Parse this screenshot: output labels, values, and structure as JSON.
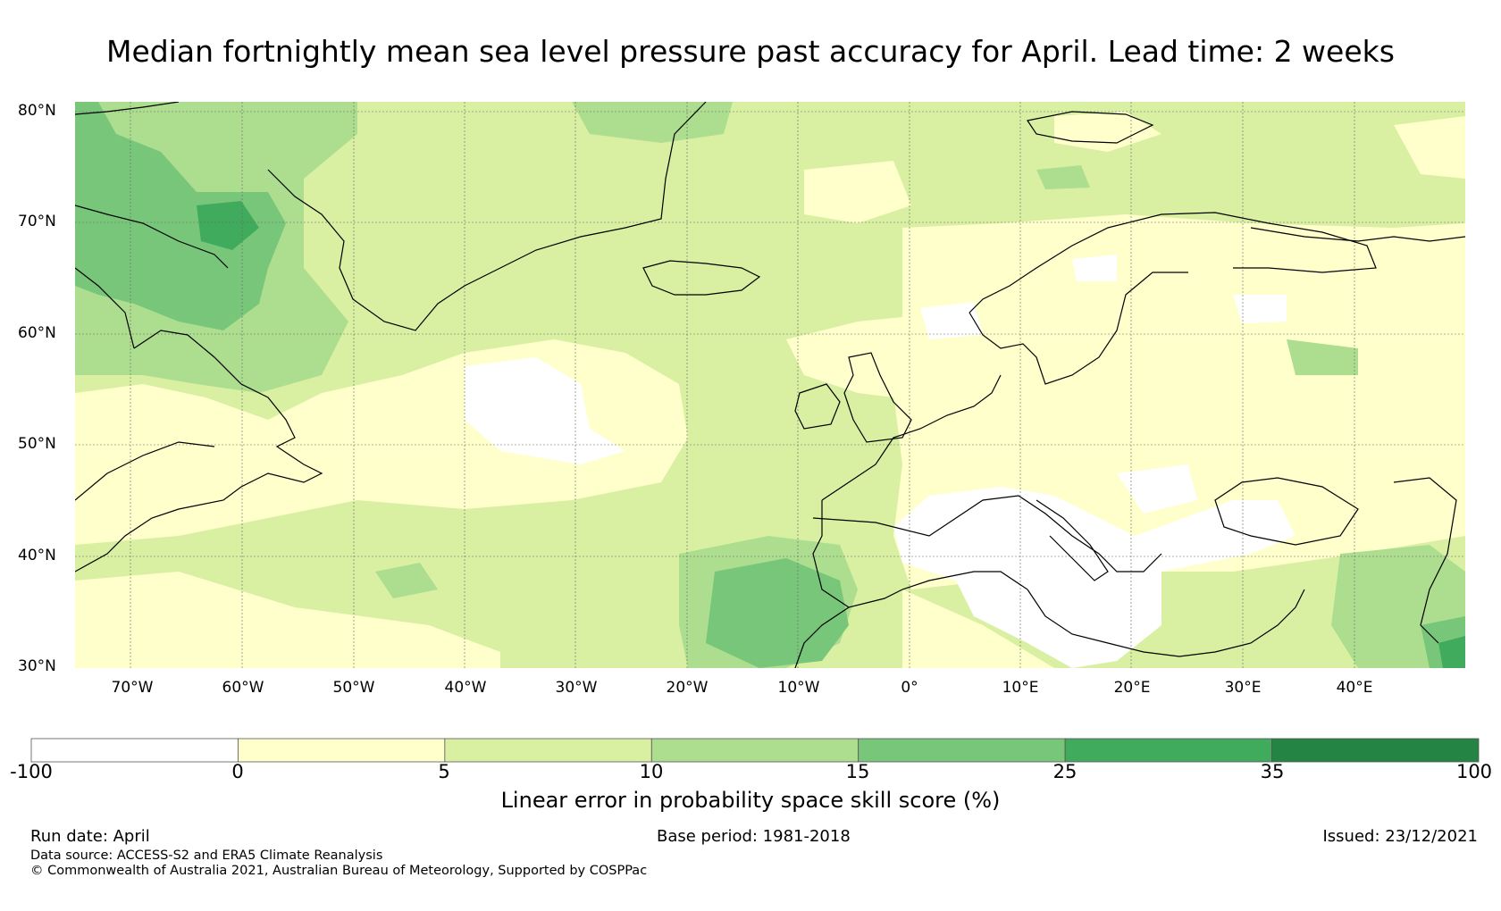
{
  "title": "Median fortnightly mean sea level pressure past accuracy for April. Lead time: 2 weeks",
  "map": {
    "lat_labels": [
      "80°N",
      "70°N",
      "60°N",
      "50°N",
      "40°N",
      "30°N"
    ],
    "lon_labels": [
      "70°W",
      "60°W",
      "50°W",
      "40°W",
      "30°W",
      "20°W",
      "10°W",
      "0°",
      "10°E",
      "20°E",
      "30°E",
      "40°E"
    ],
    "colors": {
      "white": "#ffffff",
      "c0_5": "#ffffcc",
      "c5_10": "#d9f0a3",
      "c10_15": "#addd8e",
      "c15_25": "#78c679",
      "c25_35": "#41ab5d",
      "c35_100": "#238443"
    }
  },
  "colorbar": {
    "ticks": [
      "-100",
      "0",
      "5",
      "10",
      "15",
      "25",
      "35",
      "100"
    ],
    "colors": [
      "#ffffff",
      "#ffffcc",
      "#d9f0a3",
      "#addd8e",
      "#78c679",
      "#41ab5d",
      "#238443"
    ],
    "label": "Linear error in probability space skill score (%)"
  },
  "footer": {
    "run_date": "Run date: April",
    "base_period": "Base period: 1981-2018",
    "issued": "Issued: 23/12/2021",
    "data_source": "Data source: ACCESS-S2 and ERA5 Climate Reanalysis",
    "copyright": "© Commonwealth of Australia 2021, Australian Bureau of Meteorology, Supported by COSPPac"
  }
}
